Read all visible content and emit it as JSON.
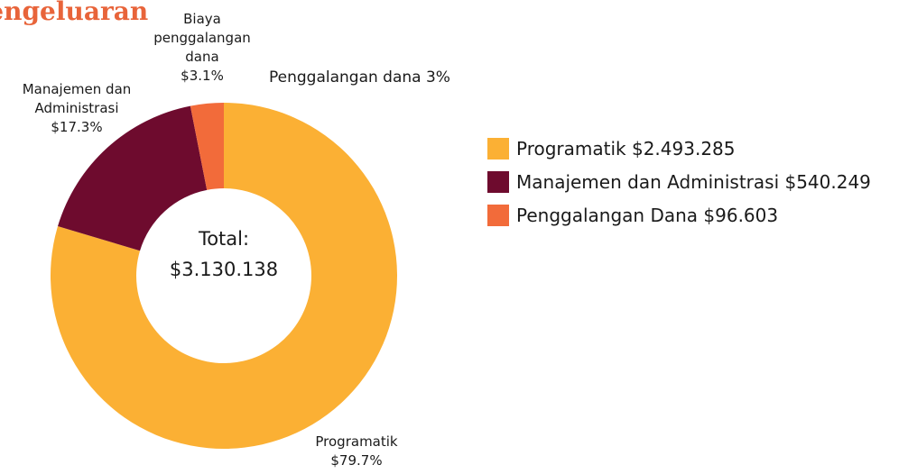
{
  "chart_data": {
    "type": "pie",
    "title": "Pengeluaran",
    "categories": [
      "Programatik",
      "Manajemen dan Administrasi",
      "Biaya penggalangan dana"
    ],
    "values": [
      79.7,
      17.3,
      3.1
    ],
    "value_labels": [
      "$79.7%",
      "$17.3%",
      "$3.1%"
    ],
    "colors": [
      "#fbb034",
      "#6e0b2e",
      "#f26b3a"
    ],
    "donut": true,
    "center_label": [
      "Total:",
      "$3.130.138"
    ],
    "annotation": "Penggalangan dana 3%",
    "legend": [
      "Programatik $2.493.285",
      "Manajemen dan Administrasi $540.249",
      "Penggalangan Dana $96.603"
    ],
    "legend_position": "right"
  }
}
